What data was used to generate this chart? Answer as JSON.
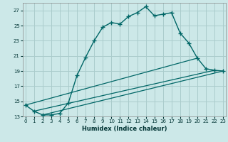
{
  "xlabel": "Humidex (Indice chaleur)",
  "background_color": "#cce8e8",
  "grid_color": "#aacccc",
  "line_color": "#006666",
  "xlim": [
    0,
    23
  ],
  "ylim": [
    13,
    28
  ],
  "xticks": [
    0,
    1,
    2,
    3,
    4,
    5,
    6,
    7,
    8,
    9,
    10,
    11,
    12,
    13,
    14,
    15,
    16,
    17,
    18,
    19,
    20,
    21,
    22,
    23
  ],
  "yticks": [
    13,
    15,
    17,
    19,
    21,
    23,
    25,
    27
  ],
  "main_curve": {
    "x": [
      0,
      1,
      2,
      3,
      4,
      5,
      6,
      7,
      8,
      9,
      10,
      11,
      12,
      13,
      14,
      15,
      16,
      17,
      18,
      19,
      20,
      21,
      22,
      23
    ],
    "y": [
      14.5,
      13.7,
      13.2,
      13.2,
      13.4,
      14.8,
      18.4,
      20.8,
      23.0,
      24.8,
      25.4,
      25.2,
      26.2,
      26.7,
      27.5,
      26.3,
      26.5,
      26.7,
      24.0,
      22.7,
      20.7,
      19.3,
      19.1,
      19.0
    ]
  },
  "straight_lines": [
    {
      "x": [
        0,
        20
      ],
      "y": [
        14.5,
        20.7
      ]
    },
    {
      "x": [
        1,
        22
      ],
      "y": [
        13.7,
        19.1
      ]
    },
    {
      "x": [
        2,
        23
      ],
      "y": [
        13.2,
        19.0
      ]
    }
  ]
}
